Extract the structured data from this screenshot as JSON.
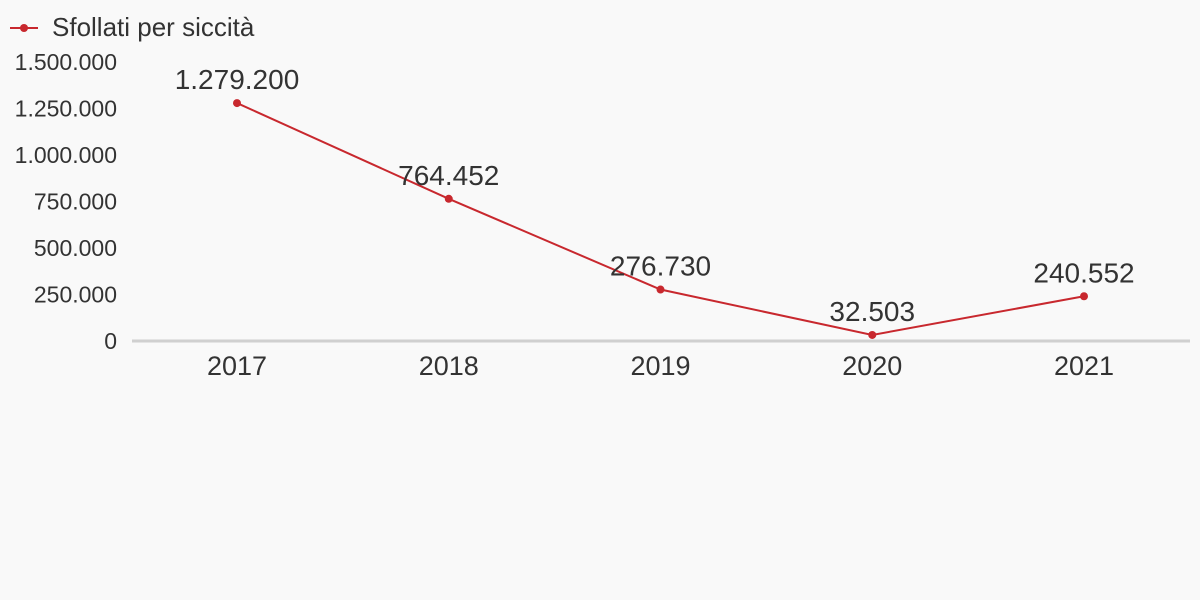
{
  "chart_data": {
    "type": "line",
    "categories": [
      "2017",
      "2018",
      "2019",
      "2020",
      "2021"
    ],
    "series": [
      {
        "name": "Sfollati per siccità",
        "values": [
          1279200,
          764452,
          276730,
          32503,
          240552
        ],
        "labels": [
          "1.279.200",
          "764.452",
          "276.730",
          "32.503",
          "240.552"
        ],
        "color": "#c8282e"
      }
    ],
    "y_ticks": [
      {
        "value": 0,
        "label": "0"
      },
      {
        "value": 250000,
        "label": "250.000"
      },
      {
        "value": 500000,
        "label": "500.000"
      },
      {
        "value": 750000,
        "label": "750.000"
      },
      {
        "value": 1000000,
        "label": "1.000.000"
      },
      {
        "value": 1250000,
        "label": "1.250.000"
      },
      {
        "value": 1500000,
        "label": "1.500.000"
      }
    ],
    "ylim": [
      0,
      1500000
    ],
    "grid": false,
    "legend_position": "top-left",
    "axis_color": "#d0d0d0",
    "background": "#f9f9f9"
  }
}
